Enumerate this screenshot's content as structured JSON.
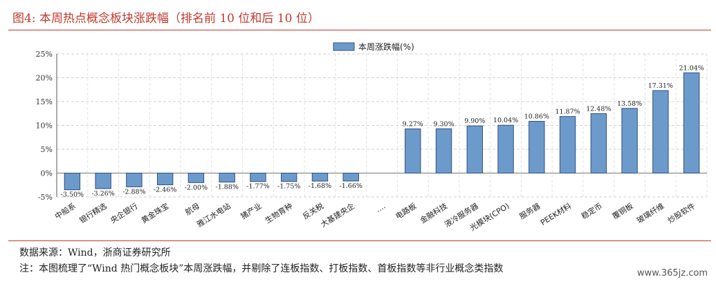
{
  "figure": {
    "title": "图4:   本周热点概念板块涨跌幅（排名前 10 位和后 10 位）",
    "source": "数据来源：Wind，浙商证券研究所",
    "note": "注：本图梳理了“Wind 热门概念板块”本周涨跌幅，并剔除了连板指数、打板指数、首板指数等非行业概念类指数",
    "watermark": "www.365jz.com"
  },
  "colors": {
    "bar": "#6c9bcb",
    "bar_edge": "#2f4f7f",
    "title": "#c0392b"
  },
  "chart_data": {
    "type": "bar",
    "title": "",
    "xlabel": "",
    "ylabel": "",
    "ylim": [
      -5,
      25
    ],
    "ytick_labels": [
      "25%",
      "20%",
      "15%",
      "10%",
      "5%",
      "0%",
      "-5%"
    ],
    "grid": true,
    "legend_position": "top-center",
    "categories": [
      "中船系",
      "银行精选",
      "央企银行",
      "黄金珠宝",
      "航母",
      "雅江水电站",
      "猪产业",
      "生物育种",
      "反关税",
      "大基建央企",
      "....",
      "电路板",
      "金融科技",
      "液冷服务器",
      "光模块(CPO)",
      "服务器",
      "PEEK材料",
      "稳定币",
      "覆铜板",
      "玻璃纤维",
      "炒股软件"
    ],
    "series": [
      {
        "name": "本周涨跌幅(%)",
        "values": [
          -3.5,
          -3.26,
          -2.88,
          -2.46,
          -2.0,
          -1.88,
          -1.77,
          -1.75,
          -1.68,
          -1.66,
          null,
          9.27,
          9.3,
          9.9,
          10.04,
          10.86,
          11.87,
          12.48,
          13.58,
          17.31,
          21.04
        ],
        "labels": [
          "-3.50%",
          "-3.26%",
          "-2.88%",
          "-2.46%",
          "-2.00%",
          "-1.88%",
          "-1.77%",
          "-1.75%",
          "-1.68%",
          "-1.66%",
          "",
          "9.27%",
          "9.30%",
          "9.90%",
          "10.04%",
          "10.86%",
          "11.87%",
          "12.48%",
          "13.58%",
          "17.31%",
          "21.04%"
        ]
      }
    ]
  }
}
